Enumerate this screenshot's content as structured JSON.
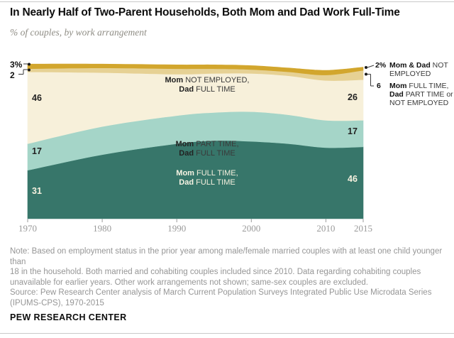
{
  "header": {
    "title": "In Nearly Half of Two-Parent Households, Both Mom and Dad Work Full-Time",
    "subtitle": "% of couples, by work arrangement"
  },
  "chart_data": {
    "type": "area",
    "stacked": true,
    "title": "In Nearly Half of Two-Parent Households, Both Mom and Dad Work Full-Time",
    "subtitle": "% of couples, by work arrangement",
    "x": [
      1970,
      1980,
      1990,
      1995,
      2000,
      2005,
      2010,
      2015
    ],
    "x_ticks": [
      1970,
      1980,
      1990,
      2000,
      2010,
      2015
    ],
    "xlim": [
      1970,
      2015
    ],
    "ylim": [
      0,
      100
    ],
    "grid": false,
    "legend_position": "in-chart-labels",
    "series": [
      {
        "id": "mom_ft_dad_ft",
        "name": "Mom FULL TIME, Dad FULL TIME",
        "color": "#37766a",
        "values": [
          31,
          41,
          48,
          50,
          49.5,
          48,
          45.5,
          46
        ],
        "labeled_values": {
          "1970": 31,
          "2015": 46
        }
      },
      {
        "id": "mom_pt_dad_ft",
        "name": "Mom PART TIME, Dad FULL TIME",
        "color": "#a5d5c8",
        "values": [
          17,
          18,
          18,
          18,
          19,
          18.5,
          17.5,
          17
        ],
        "labeled_values": {
          "1970": 17,
          "2015": 17
        }
      },
      {
        "id": "mom_ne_dad_ft",
        "name": "Mom NOT EMPLOYED, Dad FULL TIME",
        "color": "#f7f0da",
        "values": [
          46,
          34.5,
          26.5,
          25,
          24.5,
          25,
          25.5,
          26
        ],
        "labeled_values": {
          "1970": 46,
          "2015": 26
        }
      },
      {
        "id": "mom_ft_dad_pt_or_ne",
        "name": "Mom FULL TIME, Dad PART TIME or NOT EMPLOYED",
        "color": "#e6d194",
        "values": [
          2,
          3,
          3.5,
          3,
          2.5,
          2.5,
          3.5,
          6
        ],
        "labeled_values": {
          "1970": 2,
          "2015": 6
        }
      },
      {
        "id": "mom_dad_ne",
        "name": "Mom & Dad NOT EMPLOYED",
        "color": "#d2a62d",
        "values": [
          3,
          2.5,
          2.5,
          2.5,
          2.5,
          2.5,
          3,
          2
        ],
        "labeled_values": {
          "1970": 3,
          "2015": 2
        }
      }
    ]
  },
  "left_callouts": {
    "top_value": "3%",
    "bottom_value": "2"
  },
  "value_labels": {
    "left_cream": "46",
    "left_light": "17",
    "left_dark": "31",
    "right_cream": "26",
    "right_light": "17",
    "right_dark": "46"
  },
  "band_labels": {
    "cream": {
      "l1b": "Mom",
      "l1r": " NOT EMPLOYED,",
      "l2b": "Dad",
      "l2r": " FULL TIME"
    },
    "light": {
      "l1b": "Mom",
      "l1r": " PART TIME,",
      "l2b": "Dad",
      "l2r": " FULL TIME"
    },
    "dark": {
      "l1b": "Mom",
      "l1r": " FULL TIME,",
      "l2b": "Dad",
      "l2r": " FULL TIME"
    }
  },
  "right_callouts": {
    "a1_value": "2%",
    "a1_l1b": "Mom & Dad",
    "a1_l1r": " NOT",
    "a1_l2": "EMPLOYED",
    "a2_value": "6",
    "a2_l1b": "Mom",
    "a2_l1r": " FULL TIME,",
    "a2_l2b": "Dad",
    "a2_l2r": " PART TIME or",
    "a2_l3": "NOT EMPLOYED"
  },
  "notes": {
    "note_lines": [
      "Note: Based on employment status in the prior year among male/female married couples with at least one child younger than",
      "18 in the household. Both married and cohabiting couples included since 2010. Data regarding cohabiting couples",
      "unavailable for earlier years. Other work arrangements not shown; same-sex couples are excluded."
    ],
    "source_lines": [
      "Source: Pew Research Center analysis of March Current Population Surveys Integrated Public Use Microdata Series",
      "(IPUMS-CPS), 1970-2015"
    ]
  },
  "footer": {
    "brand": "PEW RESEARCH CENTER"
  }
}
